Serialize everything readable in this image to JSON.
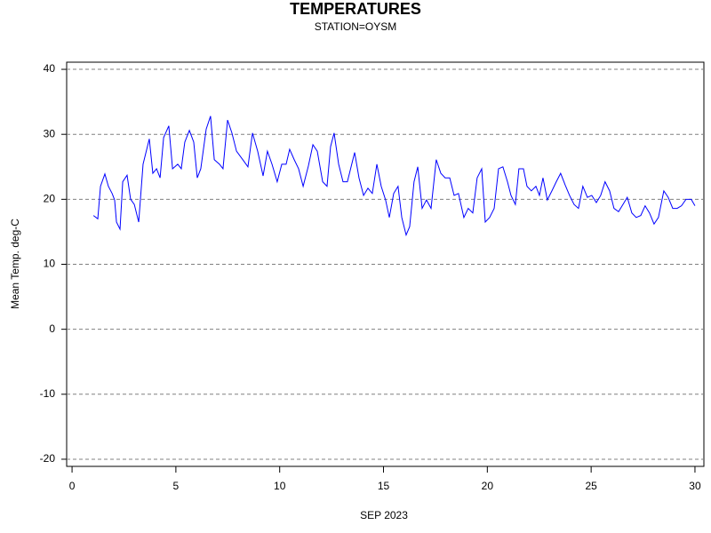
{
  "chart_data": {
    "type": "line",
    "title": "TEMPERATURES",
    "subtitle": "STATION=OYSM",
    "x_label": "SEP 2023",
    "y_label": "Mean Temp. deg-C",
    "xlim": [
      -0.26,
      30.43
    ],
    "ylim": [
      -21.1,
      41.1
    ],
    "xticks": [
      0,
      5,
      10,
      15,
      20,
      25,
      30
    ],
    "yticks": [
      -20,
      -10,
      0,
      10,
      20,
      30,
      40
    ],
    "grid": true,
    "series": [
      {
        "color": "#0000ff",
        "x": [
          1.03,
          1.24,
          1.37,
          1.58,
          1.75,
          1.93,
          2.05,
          2.14,
          2.31,
          2.44,
          2.65,
          2.82,
          3.0,
          3.21,
          3.42,
          3.72,
          3.89,
          4.07,
          4.24,
          4.41,
          4.66,
          4.84,
          5.09,
          5.26,
          5.43,
          5.65,
          5.86,
          6.03,
          6.2,
          6.46,
          6.67,
          6.85,
          7.1,
          7.27,
          7.49,
          7.7,
          7.92,
          8.22,
          8.47,
          8.69,
          8.94,
          9.2,
          9.41,
          9.63,
          9.88,
          10.1,
          10.31,
          10.48,
          10.7,
          10.91,
          11.13,
          11.38,
          11.6,
          11.81,
          12.07,
          12.28,
          12.45,
          12.62,
          12.84,
          13.05,
          13.26,
          13.61,
          13.82,
          14.04,
          14.25,
          14.46,
          14.68,
          14.89,
          15.1,
          15.28,
          15.49,
          15.7,
          15.88,
          16.09,
          16.26,
          16.47,
          16.65,
          16.86,
          17.07,
          17.29,
          17.54,
          17.76,
          17.97,
          18.19,
          18.4,
          18.61,
          18.87,
          19.08,
          19.3,
          19.51,
          19.73,
          19.9,
          20.11,
          20.33,
          20.54,
          20.75,
          20.97,
          21.14,
          21.35,
          21.52,
          21.74,
          21.91,
          22.12,
          22.34,
          22.51,
          22.68,
          22.89,
          23.11,
          23.32,
          23.53,
          23.75,
          23.96,
          24.18,
          24.39,
          24.6,
          24.82,
          25.03,
          25.25,
          25.46,
          25.67,
          25.89,
          26.1,
          26.32,
          26.53,
          26.74,
          26.96,
          27.17,
          27.39,
          27.6,
          27.81,
          28.03,
          28.24,
          28.5,
          28.71,
          28.93,
          29.14,
          29.35,
          29.57,
          29.82,
          30.0
        ],
        "values": [
          17.5,
          17.0,
          22.0,
          23.9,
          22.0,
          20.9,
          19.9,
          16.5,
          15.4,
          22.7,
          23.7,
          20.0,
          19.2,
          16.5,
          25.4,
          29.3,
          24.0,
          24.7,
          23.3,
          29.5,
          31.3,
          24.7,
          25.4,
          24.7,
          28.8,
          30.6,
          28.8,
          23.3,
          24.7,
          30.8,
          32.8,
          26.1,
          25.4,
          24.7,
          32.2,
          30.2,
          27.4,
          26.1,
          25.0,
          30.2,
          27.4,
          23.6,
          27.4,
          25.4,
          22.7,
          25.4,
          25.4,
          27.7,
          26.1,
          24.7,
          22.0,
          25.1,
          28.4,
          27.4,
          22.7,
          22.0,
          28.1,
          30.2,
          25.4,
          22.7,
          22.7,
          27.2,
          23.3,
          20.6,
          21.7,
          20.9,
          25.4,
          22.0,
          19.9,
          17.2,
          20.9,
          22.0,
          17.2,
          14.5,
          15.8,
          22.7,
          25.0,
          18.6,
          19.9,
          18.6,
          26.1,
          24.0,
          23.3,
          23.3,
          20.6,
          20.9,
          17.2,
          18.6,
          17.9,
          23.3,
          24.7,
          16.5,
          17.2,
          18.6,
          24.7,
          25.0,
          22.7,
          20.6,
          19.2,
          24.7,
          24.7,
          22.0,
          21.3,
          22.0,
          20.6,
          23.3,
          19.9,
          21.3,
          22.7,
          24.0,
          22.2,
          20.6,
          19.2,
          18.6,
          22.0,
          20.3,
          20.6,
          19.5,
          20.6,
          22.7,
          21.3,
          18.6,
          18.1,
          19.2,
          20.3,
          17.9,
          17.2,
          17.5,
          19.0,
          17.9,
          16.2,
          17.2,
          21.3,
          20.3,
          18.6,
          18.6,
          19.0,
          20.0,
          20.0,
          19.0
        ]
      }
    ]
  }
}
